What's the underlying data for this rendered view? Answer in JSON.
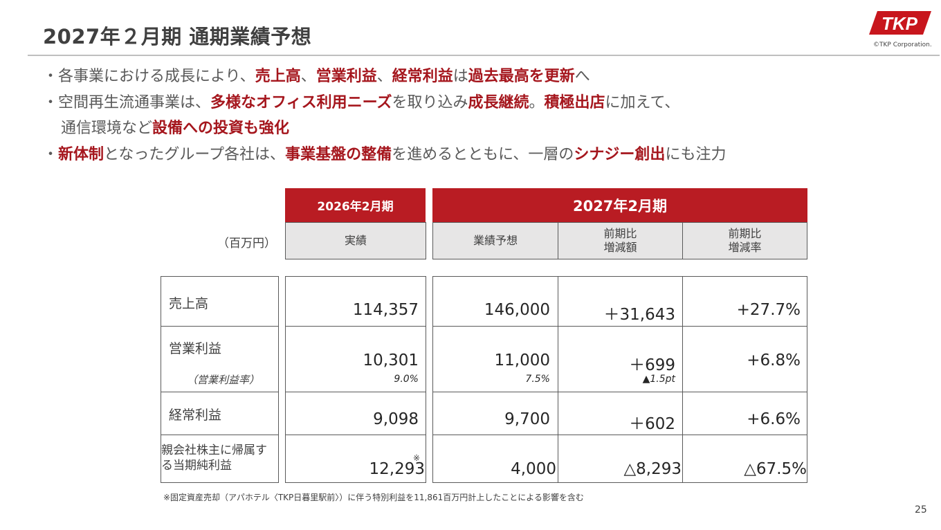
{
  "page": {
    "title": "2027年２月期 通期業績予想",
    "logo_text": "TKP",
    "copyright": "©TKP Corporation.",
    "page_number": "25",
    "accent_color": "#b91c23",
    "emphasis_color": "#a5161d"
  },
  "bullets": [
    {
      "segments": [
        {
          "t": "・各事業における成長により、",
          "em": false
        },
        {
          "t": "売上高",
          "em": true
        },
        {
          "t": "、",
          "em": false
        },
        {
          "t": "営業利益",
          "em": true
        },
        {
          "t": "、",
          "em": false
        },
        {
          "t": "経常利益",
          "em": true
        },
        {
          "t": "は",
          "em": false
        },
        {
          "t": "過去最高を更新",
          "em": true
        },
        {
          "t": "へ",
          "em": false
        }
      ]
    },
    {
      "segments": [
        {
          "t": "・空間再生流通事業は、",
          "em": false
        },
        {
          "t": "多様なオフィス利用ニーズ",
          "em": true
        },
        {
          "t": "を取り込み",
          "em": false
        },
        {
          "t": "成長継続",
          "em": true
        },
        {
          "t": "。",
          "em": false
        },
        {
          "t": "積極出店",
          "em": true
        },
        {
          "t": "に加えて、",
          "em": false
        }
      ]
    },
    {
      "cont": true,
      "segments": [
        {
          "t": "通信環境など",
          "em": false
        },
        {
          "t": "設備への投資も強化",
          "em": true
        }
      ]
    },
    {
      "segments": [
        {
          "t": "・",
          "em": false
        },
        {
          "t": "新体制",
          "em": true
        },
        {
          "t": "となったグループ各社は、",
          "em": false
        },
        {
          "t": "事業基盤の整備",
          "em": true
        },
        {
          "t": "を進めるとともに、一層の",
          "em": false
        },
        {
          "t": "シナジー創出",
          "em": true
        },
        {
          "t": "にも注力",
          "em": false
        }
      ]
    }
  ],
  "table": {
    "unit": "（百万円）",
    "period_prev": "2026年2月期",
    "period_next": "2027年2月期",
    "col_actual": "実績",
    "col_forecast": "業績予想",
    "col_diff_line1": "前期比",
    "col_diff_line2": "増減額",
    "col_rate_line1": "前期比",
    "col_rate_line2": "増減率",
    "rows": [
      {
        "label": "売上高",
        "actual": "114,357",
        "forecast": "146,000",
        "diff": "＋31,643",
        "rate": "+27.7%"
      },
      {
        "label": "営業利益",
        "sublabel": "（営業利益率）",
        "actual": "10,301",
        "actual_sub": "9.0%",
        "forecast": "11,000",
        "forecast_sub": "7.5%",
        "diff": "＋699",
        "diff_sub": "▲1.5pt",
        "rate": "+6.8%"
      },
      {
        "label": "経常利益",
        "actual": "9,098",
        "forecast": "9,700",
        "diff": "＋602",
        "rate": "+6.6%"
      },
      {
        "label": "親会社株主に帰属する当期純利益",
        "actual": "12,293",
        "actual_mark": "※",
        "forecast": "4,000",
        "diff": "△8,293",
        "rate": "△67.5%"
      }
    ]
  },
  "footnote": "※固定資産売却（アパホテル〈TKP日暮里駅前〉）に伴う特別利益を11,861百万円計上したことによる影響を含む"
}
